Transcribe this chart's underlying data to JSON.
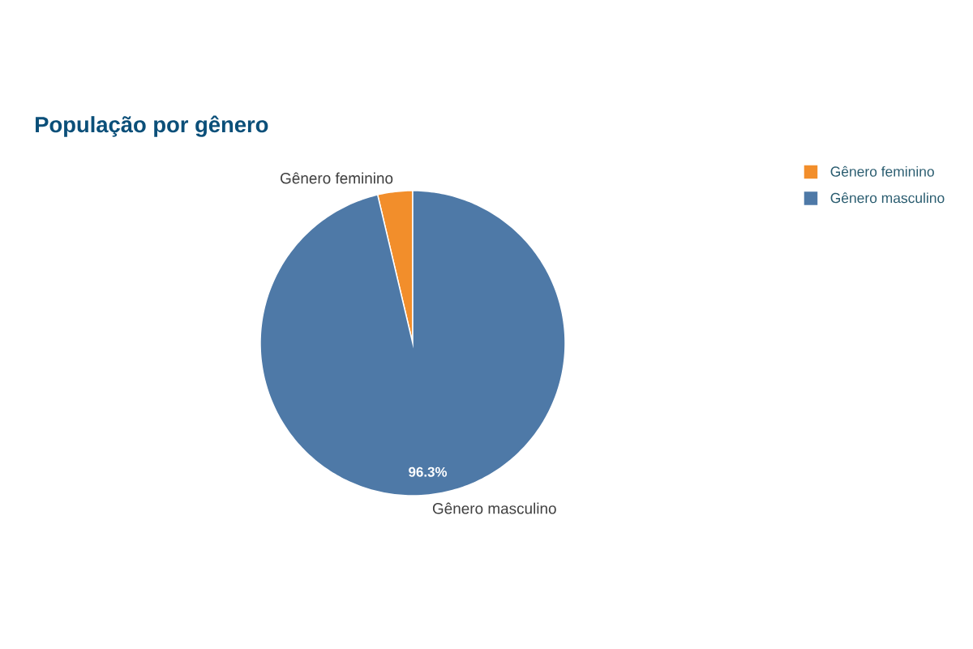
{
  "chart_data": {
    "type": "pie",
    "title": "População por gênero",
    "categories": [
      "Gênero feminino",
      "Gênero masculino"
    ],
    "values": [
      3.7,
      96.3
    ],
    "colors": [
      "#f28e2b",
      "#4e79a7"
    ],
    "value_labels": [
      null,
      "96.3%"
    ],
    "legend": "top right"
  }
}
